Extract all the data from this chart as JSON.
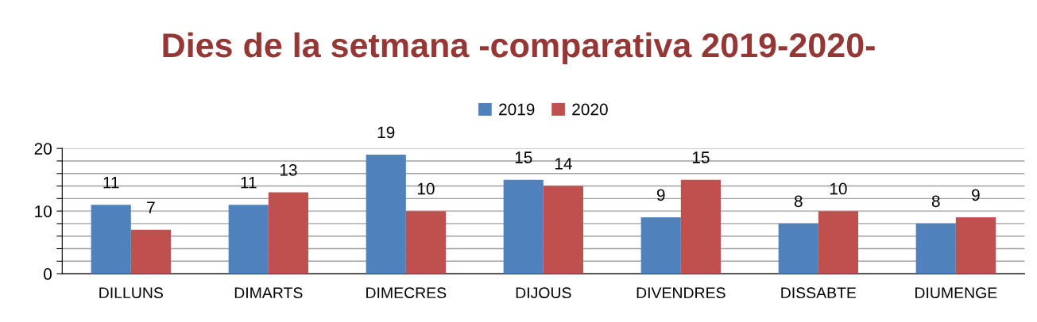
{
  "chart_data": {
    "type": "bar",
    "title": "Dies de la setmana -comparativa 2019-2020-",
    "categories": [
      "DILLUNS",
      "DIMARTS",
      "DIMECRES",
      "DIJOUS",
      "DIVENDRES",
      "DISSABTE",
      "DIUMENGE"
    ],
    "series": [
      {
        "name": "2019",
        "color": "#4f81bd",
        "values": [
          11,
          11,
          19,
          15,
          9,
          8,
          8
        ]
      },
      {
        "name": "2020",
        "color": "#c0504d",
        "values": [
          7,
          13,
          10,
          14,
          15,
          10,
          9
        ]
      }
    ],
    "ylim": [
      0,
      20
    ],
    "yticks": [
      0,
      {
        "value": 2,
        "label": null
      },
      {
        "value": 4,
        "label": null
      },
      {
        "value": 6,
        "label": null
      },
      {
        "value": 8,
        "label": null
      },
      10,
      {
        "value": 12,
        "label": null
      },
      {
        "value": 14,
        "label": null
      },
      {
        "value": 16,
        "label": null
      },
      {
        "value": 18,
        "label": null
      },
      20
    ],
    "grid": "y",
    "legend": "top",
    "data_labels": true
  }
}
